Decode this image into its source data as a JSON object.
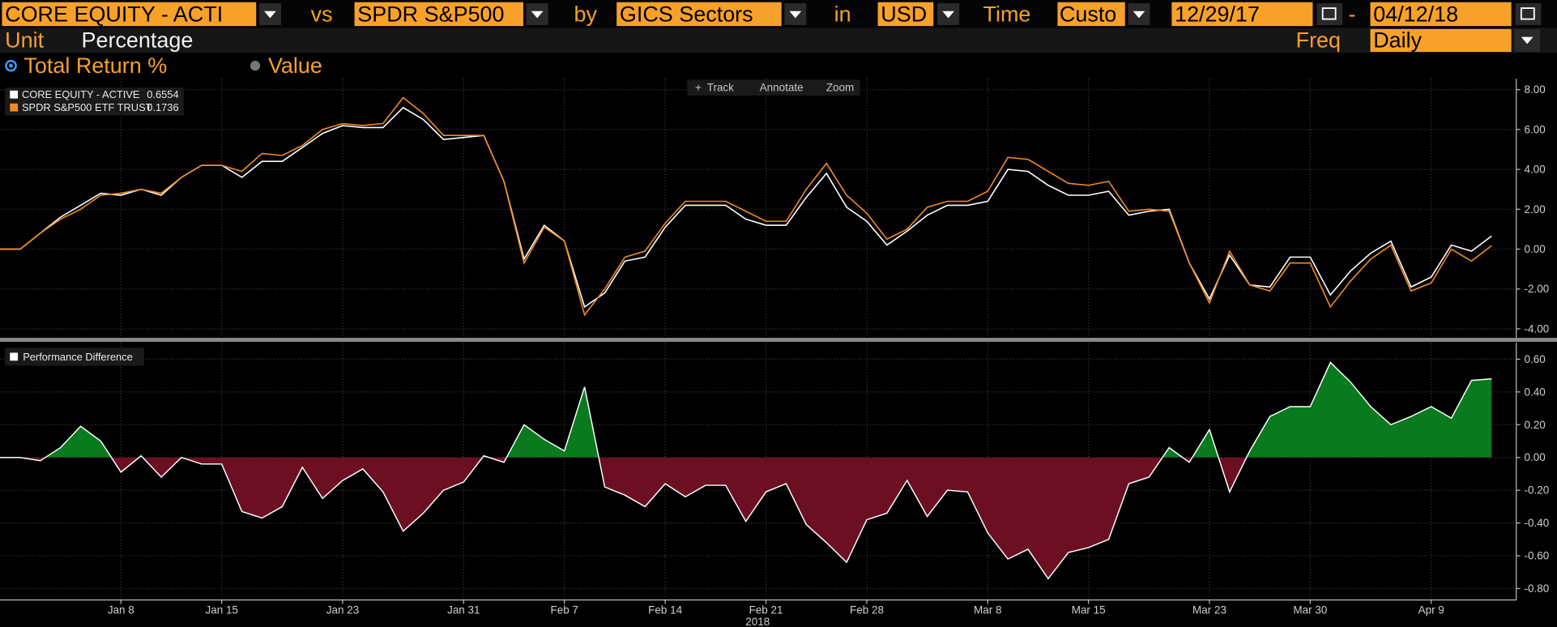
{
  "toolbar": {
    "security": "CORE EQUITY - ACTI",
    "vs": "vs",
    "benchmark": "SPDR S&P500",
    "by": "by",
    "grouping": "GICS Sectors",
    "in": "in",
    "currency": "USD",
    "time": "Time",
    "period": "Custo",
    "start": "12/29/17",
    "dash": "-",
    "end": "04/12/18",
    "unit_label": "Unit",
    "unit": "Percentage",
    "freq_label": "Freq",
    "freq": "Daily",
    "modes": [
      "Total Return %",
      "Value"
    ]
  },
  "chart_tools": [
    "Track",
    "Annotate",
    "Zoom"
  ],
  "chart_data": [
    {
      "type": "line",
      "grid": true,
      "ylim": [
        -4.45,
        8.55
      ],
      "yticks": [
        {
          "value": 8,
          "label": "8.00"
        },
        {
          "value": 6,
          "label": "6.00"
        },
        {
          "value": 4,
          "label": "4.00"
        },
        {
          "value": 2,
          "label": "2.00"
        },
        {
          "value": 0,
          "label": "0.00"
        },
        {
          "value": -2,
          "label": "-2.00"
        },
        {
          "value": -4,
          "label": "-4.00"
        }
      ],
      "series": [
        {
          "name": "CORE EQUITY - ACTIVE",
          "legend_value": 0.6554,
          "color": "#ffffff",
          "values": [
            0,
            0,
            0.8,
            1.6,
            2.2,
            2.8,
            2.7,
            3.0,
            2.7,
            3.6,
            4.2,
            4.2,
            3.6,
            4.4,
            4.4,
            5.1,
            5.8,
            6.2,
            6.1,
            6.1,
            7.1,
            6.5,
            5.5,
            5.6,
            5.7,
            3.4,
            -0.5,
            1.2,
            0.4,
            -2.9,
            -2.2,
            -0.6,
            -0.4,
            1.1,
            2.2,
            2.2,
            2.2,
            1.5,
            1.2,
            1.2,
            2.6,
            3.8,
            2.1,
            1.4,
            0.2,
            0.9,
            1.7,
            2.2,
            2.2,
            2.4,
            4.0,
            3.9,
            3.2,
            2.7,
            2.7,
            2.9,
            1.7,
            1.9,
            2.0,
            -0.7,
            -2.5,
            -0.3,
            -1.8,
            -1.9,
            -0.4,
            -0.4,
            -2.3,
            -1.1,
            -0.2,
            0.4,
            -1.9,
            -1.4,
            0.2,
            -0.1,
            0.6554
          ]
        },
        {
          "name": "SPDR S&P500 ETF TRUST",
          "legend_value": 0.1736,
          "color": "#f28a25",
          "values": [
            0,
            0,
            0.8,
            1.5,
            2.0,
            2.7,
            2.8,
            3.0,
            2.8,
            3.6,
            4.2,
            4.2,
            3.9,
            4.8,
            4.7,
            5.2,
            6.0,
            6.3,
            6.2,
            6.3,
            7.6,
            6.8,
            5.7,
            5.7,
            5.7,
            3.4,
            -0.7,
            1.1,
            0.4,
            -3.3,
            -2.0,
            -0.4,
            -0.1,
            1.3,
            2.4,
            2.4,
            2.4,
            1.9,
            1.4,
            1.4,
            3.0,
            4.3,
            2.7,
            1.8,
            0.5,
            1.0,
            2.1,
            2.4,
            2.4,
            2.9,
            4.6,
            4.5,
            3.9,
            3.3,
            3.2,
            3.4,
            1.9,
            2.0,
            1.9,
            -0.7,
            -2.7,
            -0.1,
            -1.8,
            -2.1,
            -0.7,
            -0.7,
            -2.9,
            -1.6,
            -0.5,
            0.2,
            -2.1,
            -1.7,
            0,
            -0.6,
            0.1736
          ]
        }
      ]
    },
    {
      "type": "area",
      "grid": true,
      "ylim": [
        -0.87,
        0.7
      ],
      "yticks": [
        {
          "value": 0.6,
          "label": "0.60"
        },
        {
          "value": 0.4,
          "label": "0.40"
        },
        {
          "value": 0.2,
          "label": "0.20"
        },
        {
          "value": 0,
          "label": "0.00"
        },
        {
          "value": -0.2,
          "label": "-0.20"
        },
        {
          "value": -0.4,
          "label": "-0.40"
        },
        {
          "value": -0.6,
          "label": "-0.60"
        },
        {
          "value": -0.8,
          "label": "-0.80"
        }
      ],
      "x_label": "2018",
      "categories": [
        null,
        null,
        null,
        null,
        null,
        null,
        "Jan 8",
        null,
        null,
        null,
        null,
        "Jan 15",
        null,
        null,
        null,
        null,
        null,
        "Jan 23",
        null,
        null,
        null,
        null,
        null,
        "Jan 31",
        null,
        null,
        null,
        null,
        "Feb 7",
        null,
        null,
        null,
        null,
        "Feb 14",
        null,
        null,
        null,
        null,
        "Feb 21",
        null,
        null,
        null,
        null,
        "Feb 28",
        null,
        null,
        null,
        null,
        null,
        "Mar 8",
        null,
        null,
        null,
        null,
        "Mar 15",
        null,
        null,
        null,
        null,
        null,
        "Mar 23",
        null,
        null,
        null,
        null,
        "Mar 30",
        null,
        null,
        null,
        null,
        null,
        "Apr 9",
        null,
        null,
        null
      ],
      "series": [
        {
          "name": "Performance Difference",
          "color": "#ffffff",
          "positive_color": "#0a7a1e",
          "negative_color": "#6d0f22",
          "values": [
            0,
            0,
            -0.02,
            0.06,
            0.19,
            0.1,
            -0.09,
            0.01,
            -0.12,
            0,
            -0.04,
            -0.04,
            -0.33,
            -0.37,
            -0.3,
            -0.06,
            -0.25,
            -0.14,
            -0.07,
            -0.21,
            -0.45,
            -0.34,
            -0.2,
            -0.15,
            0.01,
            -0.03,
            0.2,
            0.11,
            0.04,
            0.43,
            -0.18,
            -0.23,
            -0.3,
            -0.16,
            -0.24,
            -0.17,
            -0.17,
            -0.39,
            -0.21,
            -0.16,
            -0.41,
            -0.52,
            -0.64,
            -0.38,
            -0.34,
            -0.14,
            -0.36,
            -0.2,
            -0.21,
            -0.46,
            -0.62,
            -0.56,
            -0.74,
            -0.58,
            -0.55,
            -0.5,
            -0.16,
            -0.12,
            0.06,
            -0.03,
            0.17,
            -0.21,
            0.04,
            0.25,
            0.31,
            0.31,
            0.58,
            0.46,
            0.31,
            0.2,
            0.25,
            0.31,
            0.24,
            0.47,
            0.48
          ]
        }
      ]
    }
  ]
}
